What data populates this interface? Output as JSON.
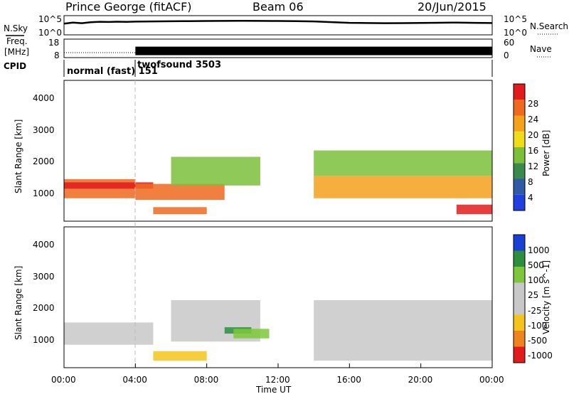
{
  "header": {
    "title": "Prince George (fitACF)",
    "beam": "Beam 06",
    "date": "20/Jun/2015"
  },
  "side_labels": {
    "nsky": "N.Sky",
    "freq_line1": "Freq.",
    "freq_line2": "[MHz]",
    "cpid": "CPID",
    "nsearch": "N.Search",
    "nave": "Nave"
  },
  "colors": {
    "panel_border": "#000000",
    "noise_series": "#000000",
    "dashed_marker": "#bbbbbb"
  },
  "chart_data": [
    {
      "type": "line",
      "panel": "noise",
      "ylabel_left": "N.Sky",
      "ylabel_right": "N.Search",
      "y_scale": "log",
      "y_ticks_left": [
        "10^5",
        "10^0"
      ],
      "y_ticks_right": [
        "10^5",
        "10^0"
      ],
      "xlim": [
        "00:00",
        "24:00"
      ],
      "series": [
        {
          "x": [
            "00:00",
            "00:30",
            "01:00",
            "01:30",
            "02:00",
            "02:30",
            "03:00",
            "03:30",
            "04:00",
            "05:00",
            "06:00",
            "07:00",
            "08:00",
            "09:00",
            "10:00",
            "11:00",
            "12:00",
            "13:00",
            "14:00",
            "15:00",
            "16:00",
            "17:00",
            "18:00",
            "19:00",
            "20:00",
            "21:00",
            "22:00",
            "23:00",
            "24:00"
          ],
          "values": [
            900,
            1800,
            1200,
            2200,
            3000,
            2600,
            3100,
            2900,
            3300,
            3800,
            4200,
            4600,
            4900,
            5200,
            5600,
            5300,
            5100,
            4400,
            3800,
            2400,
            1500,
            1300,
            1200,
            1250,
            1400,
            1600,
            1800,
            1500,
            1300
          ]
        }
      ]
    },
    {
      "type": "line",
      "panel": "frequency",
      "ylabel_left": "Freq. [MHz]",
      "ylabel_right": "Nave",
      "y_ticks_left": [
        "18",
        "8"
      ],
      "y_ticks_right": [
        "60",
        "0"
      ],
      "xlim": [
        "00:00",
        "24:00"
      ],
      "series": [
        {
          "x": [
            "00:00",
            "04:00"
          ],
          "values": [
            10.5,
            10.5
          ]
        },
        {
          "x": [
            "04:00",
            "24:00"
          ],
          "values": [
            11.5,
            11.5
          ]
        }
      ]
    },
    {
      "type": "table",
      "panel": "cpid",
      "label": "CPID",
      "entries": [
        {
          "start": "00:00",
          "text": "normal (fast)  151"
        },
        {
          "start": "04:00",
          "text": "twofsound  3503"
        }
      ]
    },
    {
      "type": "heatmap",
      "panel": "power",
      "ylabel": "Slant Range [km]",
      "ylim": [
        180,
        4600
      ],
      "y_ticks": [
        "1000",
        "2000",
        "3000",
        "4000"
      ],
      "xlim": [
        "00:00",
        "24:00"
      ],
      "colorbar": {
        "label": "Power [dB]",
        "ticks": [
          "4",
          "8",
          "12",
          "16",
          "20",
          "24",
          "28"
        ],
        "colors": [
          "#1f3fe0",
          "#2f5aa8",
          "#3a8a4c",
          "#7bbf3a",
          "#f2dc1a",
          "#f4a11c",
          "#ef6a1e",
          "#e21b1b"
        ]
      },
      "regions": [
        {
          "t0": "00:00",
          "t1": "04:00",
          "r0": 900,
          "r1": 1500,
          "value": 26
        },
        {
          "t0": "00:00",
          "t1": "05:00",
          "r0": 1200,
          "r1": 1400,
          "value": 29
        },
        {
          "t0": "04:00",
          "t1": "09:00",
          "r0": 850,
          "r1": 1350,
          "value": 24
        },
        {
          "t0": "05:00",
          "t1": "08:00",
          "r0": 400,
          "r1": 620,
          "value": 27
        },
        {
          "t0": "06:00",
          "t1": "11:00",
          "r0": 1300,
          "r1": 2200,
          "value": 15
        },
        {
          "t0": "14:00",
          "t1": "24:00",
          "r0": 900,
          "r1": 1600,
          "value": 22
        },
        {
          "t0": "14:00",
          "t1": "24:00",
          "r0": 1600,
          "r1": 2400,
          "value": 13
        },
        {
          "t0": "22:00",
          "t1": "24:00",
          "r0": 400,
          "r1": 700,
          "value": 28
        }
      ]
    },
    {
      "type": "heatmap",
      "panel": "velocity",
      "ylabel": "Slant Range [km]",
      "xlabel": "Time UT",
      "ylim": [
        180,
        4600
      ],
      "y_ticks": [
        "1000",
        "2000",
        "3000",
        "4000"
      ],
      "xlim": [
        "00:00",
        "24:00"
      ],
      "x_ticks": [
        "00:00",
        "04:00",
        "08:00",
        "12:00",
        "16:00",
        "20:00",
        "00:00"
      ],
      "colorbar": {
        "label": "Velocity [m s^-1]",
        "ticks": [
          "1000",
          "500",
          "100",
          "25",
          "-25",
          "-100",
          "-500",
          "-1000"
        ],
        "colors": [
          "#1a3fd6",
          "#2c8f3e",
          "#7cc83a",
          "#c8c8c8",
          "#c8c8c8",
          "#f4c41c",
          "#f0841c",
          "#e21b1b"
        ]
      },
      "regions": [
        {
          "t0": "00:00",
          "t1": "05:00",
          "r0": 900,
          "r1": 1600,
          "value": 0
        },
        {
          "t0": "05:00",
          "t1": "08:00",
          "r0": 400,
          "r1": 700,
          "value": -150
        },
        {
          "t0": "06:00",
          "t1": "11:00",
          "r0": 1000,
          "r1": 2300,
          "value": 0
        },
        {
          "t0": "09:00",
          "t1": "10:30",
          "r0": 1250,
          "r1": 1450,
          "value": 700
        },
        {
          "t0": "09:30",
          "t1": "11:30",
          "r0": 1100,
          "r1": 1400,
          "value": 150
        },
        {
          "t0": "14:00",
          "t1": "24:00",
          "r0": 400,
          "r1": 2300,
          "value": 0
        }
      ]
    }
  ]
}
